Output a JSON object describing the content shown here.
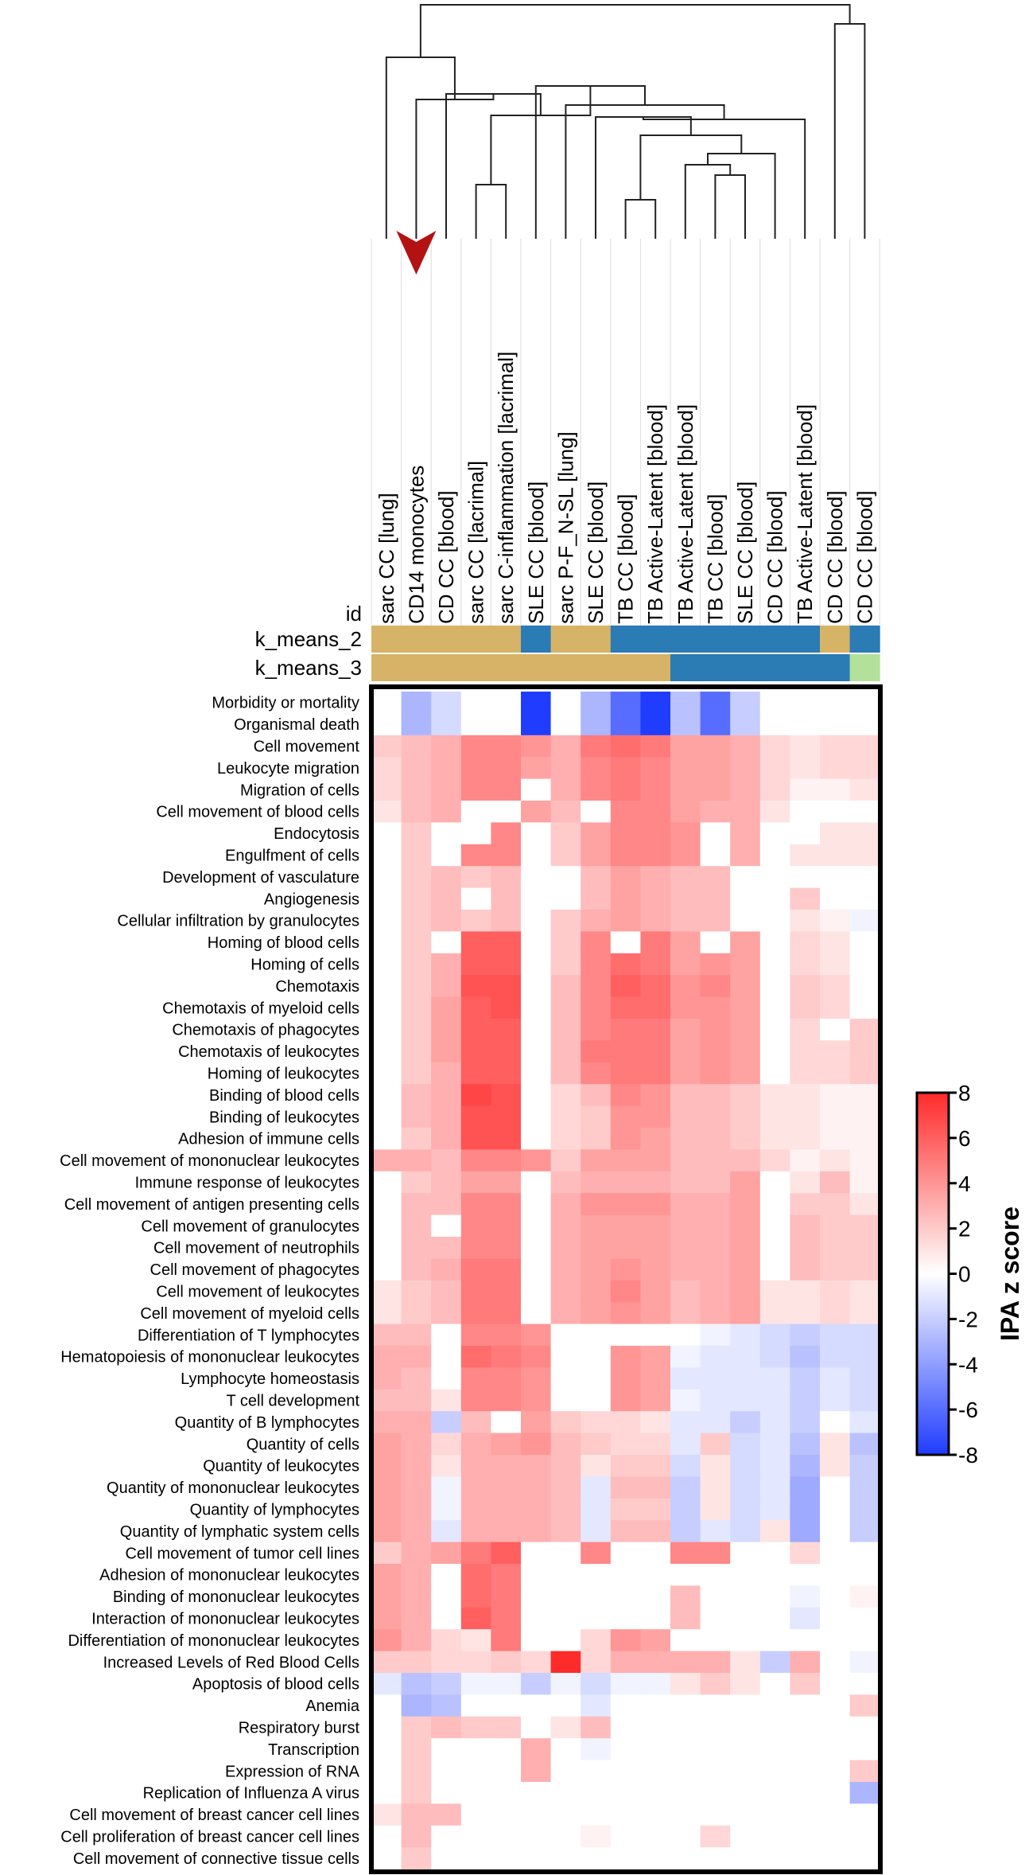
{
  "chart_data": {
    "type": "heatmap",
    "id_label": "id",
    "columns": [
      "sarc CC [lung]",
      "CD14 monocytes",
      "CD CC [blood]",
      "sarc CC [lacrimal]",
      "sarc C-inflammation [lacrimal]",
      "SLE CC [blood]",
      "sarc P-F_N-SL [lung]",
      "SLE CC [blood]",
      "TB CC [blood]",
      "TB Active-Latent [blood]",
      "TB Active-Latent [blood]",
      "TB CC [blood]",
      "SLE CC [blood]",
      "CD CC [blood]",
      "TB Active-Latent [blood]",
      "CD CC [blood]",
      "CD CC [blood]"
    ],
    "highlighted_column": "CD14 monocytes",
    "annotations": [
      {
        "name": "k_means_2",
        "clusters": [
          1,
          1,
          1,
          1,
          1,
          2,
          1,
          1,
          2,
          2,
          2,
          2,
          2,
          2,
          2,
          1,
          2
        ]
      },
      {
        "name": "k_means_3",
        "clusters": [
          1,
          1,
          1,
          1,
          1,
          1,
          1,
          1,
          1,
          1,
          2,
          2,
          2,
          2,
          2,
          2,
          3
        ]
      }
    ],
    "cluster_colors": {
      "1": "#d6b366",
      "2": "#2b7bb4",
      "3": "#b3e09a"
    },
    "rows": [
      "Morbidity or mortality",
      "Organismal death",
      "Cell movement",
      "Leukocyte migration",
      "Migration of cells",
      "Cell movement of blood cells",
      "Endocytosis",
      "Engulfment of cells",
      "Development of vasculature",
      "Angiogenesis",
      "Cellular infiltration by granulocytes",
      "Homing of blood cells",
      "Homing of cells",
      "Chemotaxis",
      "Chemotaxis of myeloid cells",
      "Chemotaxis of phagocytes",
      "Chemotaxis of leukocytes",
      "Homing of leukocytes",
      "Binding of blood cells",
      "Binding of leukocytes",
      "Adhesion of immune cells",
      "Cell movement of mononuclear leukocytes",
      "Immune response of leukocytes",
      "Cell movement of antigen presenting cells",
      "Cell movement of granulocytes",
      "Cell movement of neutrophils",
      "Cell movement of phagocytes",
      "Cell movement of leukocytes",
      "Cell movement of myeloid cells",
      "Differentiation of T lymphocytes",
      "Hematopoiesis of mononuclear leukocytes",
      "Lymphocyte homeostasis",
      "T cell development",
      "Quantity of B lymphocytes",
      "Quantity of cells",
      "Quantity of leukocytes",
      "Quantity of mononuclear leukocytes",
      "Quantity of lymphocytes",
      "Quantity of lymphatic system cells",
      "Cell movement of tumor cell lines",
      "Adhesion of mononuclear leukocytes",
      "Binding of mononuclear leukocytes",
      "Interaction of mononuclear leukocytes",
      "Differentiation of mononuclear leukocytes",
      "Increased Levels of Red Blood Cells",
      "Apoptosis of blood cells",
      "Anemia",
      "Respiratory burst",
      "Transcription",
      "Expression of RNA",
      "Replication of Influenza A virus",
      "Cell movement of breast cancer cell lines",
      "Cell proliferation of breast cancer cell lines",
      "Cell movement of connective tissue cells"
    ],
    "values": [
      [
        0,
        -3,
        -1.5,
        0,
        0,
        -8,
        0,
        -3,
        -6,
        -8,
        -2.5,
        -6,
        -2,
        0,
        0,
        0,
        0
      ],
      [
        0,
        -3,
        -1.5,
        0,
        0,
        -8,
        0,
        -3,
        -6,
        -8,
        -2.5,
        -6,
        -2,
        0,
        0,
        0,
        0
      ],
      [
        2,
        2.5,
        3,
        4.5,
        4.5,
        4,
        3,
        5,
        5.5,
        5,
        3.5,
        3.5,
        3,
        1.5,
        1,
        1.5,
        1.5
      ],
      [
        1.5,
        2.5,
        3,
        4.5,
        4.5,
        3.5,
        3,
        4.5,
        5,
        4.5,
        3.5,
        3.5,
        3,
        1.5,
        1,
        1.5,
        1.5
      ],
      [
        1.5,
        2.5,
        3,
        4.5,
        4.5,
        0,
        3,
        4.5,
        5,
        4.5,
        3.5,
        3.5,
        3,
        1.5,
        0.5,
        0.5,
        1
      ],
      [
        1,
        2.5,
        3,
        0,
        0,
        3.5,
        2.5,
        0,
        4.5,
        4.5,
        3.5,
        3,
        3,
        1,
        0,
        0,
        0
      ],
      [
        0,
        2,
        0,
        0,
        4.5,
        0,
        2,
        3.5,
        4.5,
        4.5,
        4,
        0,
        3,
        0,
        0,
        1,
        1
      ],
      [
        0,
        2,
        0,
        4.5,
        4.5,
        0,
        2,
        3.5,
        4.5,
        4.5,
        4,
        0,
        3,
        0,
        1,
        1,
        1
      ],
      [
        0,
        2,
        2.5,
        2,
        2.5,
        0,
        0,
        2.5,
        3.5,
        3,
        2.5,
        2.5,
        0,
        0,
        0,
        0,
        0
      ],
      [
        0,
        2,
        2.5,
        0,
        2.5,
        0,
        0,
        2.5,
        3.5,
        3,
        2.5,
        2.5,
        0,
        0,
        2,
        0,
        0
      ],
      [
        0,
        2,
        2.5,
        2,
        2.5,
        0,
        2,
        3,
        3.5,
        3,
        2.5,
        2.5,
        0,
        0,
        1,
        0.5,
        -0.5
      ],
      [
        0,
        2,
        0,
        6,
        6,
        0,
        2,
        4.5,
        0,
        5,
        3.5,
        0,
        3.5,
        0,
        1.5,
        1,
        0
      ],
      [
        0,
        2,
        3,
        6,
        6,
        0,
        2,
        4.5,
        5.5,
        5,
        3.5,
        4,
        3.5,
        0,
        1.5,
        1,
        0
      ],
      [
        0,
        2,
        3,
        6.5,
        6.5,
        0,
        2.5,
        4.5,
        6,
        5.5,
        4,
        4.5,
        3.5,
        0,
        2,
        1.5,
        0
      ],
      [
        0,
        2,
        3.5,
        6,
        6.5,
        0,
        2.5,
        4.5,
        5.5,
        5.5,
        4,
        4,
        3.5,
        0,
        2,
        1.5,
        0
      ],
      [
        0,
        2,
        3.5,
        6,
        6,
        0,
        2.5,
        4.5,
        5,
        5,
        3.5,
        4,
        3.5,
        0,
        1.5,
        0,
        2
      ],
      [
        0,
        2,
        3.5,
        6,
        6,
        0,
        2.5,
        5,
        5,
        5,
        3.5,
        4,
        3.5,
        0,
        1.5,
        1.5,
        2
      ],
      [
        0,
        2,
        3,
        6,
        6,
        0,
        2.5,
        4.5,
        5,
        5,
        3.5,
        4,
        3.5,
        0,
        1.5,
        1.5,
        2
      ],
      [
        0,
        2.5,
        3,
        7,
        6.5,
        0,
        1.5,
        2.5,
        4.5,
        4,
        2.5,
        2.5,
        2,
        1,
        1,
        0.5,
        0.5
      ],
      [
        0,
        2.5,
        3,
        6.5,
        6.5,
        0,
        1.5,
        2,
        4,
        4,
        2.5,
        2.5,
        2,
        1,
        1,
        0.5,
        0.5
      ],
      [
        0,
        2,
        3,
        6.5,
        6.5,
        0,
        1.5,
        2,
        4,
        3.5,
        2.5,
        2.5,
        2,
        1,
        1,
        0.5,
        0.5
      ],
      [
        3,
        3,
        2.5,
        4.5,
        4.5,
        4,
        2,
        3.5,
        3.5,
        3.5,
        2.5,
        2.5,
        2.5,
        1.5,
        0.5,
        1,
        0.5
      ],
      [
        0,
        2,
        2.5,
        3.5,
        3.5,
        0,
        2.5,
        3,
        3,
        3,
        2.5,
        2.5,
        3.5,
        0,
        1,
        2.5,
        0.5
      ],
      [
        0,
        2.5,
        2.5,
        4.5,
        4.5,
        0,
        3,
        4,
        4,
        4,
        3,
        3,
        3.5,
        0,
        2,
        2,
        1
      ],
      [
        0,
        2.5,
        0,
        4.5,
        4.5,
        0,
        3,
        3.5,
        3.5,
        3.5,
        3,
        3,
        3.5,
        0,
        2.5,
        2,
        2
      ],
      [
        0,
        2.5,
        2.5,
        4.5,
        4.5,
        0,
        3,
        3.5,
        3.5,
        3.5,
        3,
        3,
        3.5,
        0,
        2.5,
        2,
        2
      ],
      [
        0,
        2.5,
        3,
        5,
        5,
        0,
        3,
        3.5,
        4,
        3.5,
        3,
        3,
        3.5,
        0,
        2.5,
        2,
        2
      ],
      [
        1,
        2,
        2.5,
        5,
        5,
        0,
        3,
        3.5,
        4.5,
        3.5,
        2.5,
        3,
        3.5,
        1,
        1,
        1.5,
        1
      ],
      [
        1,
        2,
        2.5,
        5,
        5,
        0,
        3,
        3.5,
        4,
        3.5,
        2.5,
        3,
        3.5,
        1,
        1,
        1.5,
        1
      ],
      [
        2.5,
        2.5,
        0,
        4.5,
        4.5,
        4,
        0,
        0,
        0,
        0,
        0,
        -0.5,
        -1,
        -1.5,
        -2,
        -1.5,
        -1.5
      ],
      [
        3,
        3,
        0,
        5.5,
        5,
        4.5,
        0,
        0,
        4,
        3.5,
        -0.5,
        -1,
        -1,
        -1.5,
        -2.5,
        -1.5,
        -1.5
      ],
      [
        3,
        2.5,
        0,
        4.5,
        4.5,
        4,
        0,
        0,
        4,
        3.5,
        -1,
        -1,
        -1,
        -1,
        -2,
        -1,
        -1.5
      ],
      [
        2.5,
        2.5,
        1,
        4.5,
        4.5,
        4,
        0,
        0,
        4,
        3.5,
        -0.5,
        -1,
        -1,
        -1,
        -2,
        -1,
        -1.5
      ],
      [
        3,
        3,
        -2,
        2.5,
        0,
        3.5,
        2,
        1.5,
        1.5,
        1,
        -1,
        -1,
        -2,
        -1,
        -2,
        0,
        -1
      ],
      [
        3.5,
        3,
        1.5,
        3,
        3.5,
        4,
        2.5,
        2,
        1.5,
        1.5,
        -1,
        2,
        -1.5,
        -1,
        -2.5,
        1,
        -2.5
      ],
      [
        3.5,
        3,
        1,
        3,
        3,
        3,
        2.5,
        1,
        2,
        2,
        -1.5,
        1,
        -1.5,
        -1,
        -3,
        1,
        -2
      ],
      [
        3.5,
        3,
        -0.5,
        3,
        3,
        3,
        2.5,
        -1,
        2.5,
        2.5,
        -2,
        1,
        -1.5,
        -1,
        -3.5,
        0,
        -2
      ],
      [
        3.5,
        3,
        -0.5,
        3,
        3,
        3,
        2.5,
        -1,
        2,
        2,
        -2,
        1,
        -1.5,
        -1,
        -3.5,
        0,
        -2
      ],
      [
        3.5,
        3,
        -1,
        3,
        3,
        3,
        2.5,
        -1,
        2.5,
        2.5,
        -2,
        -1,
        -1.5,
        1,
        -3.5,
        0,
        -2
      ],
      [
        2,
        3,
        3.5,
        5,
        6,
        0,
        0,
        4.5,
        0,
        0,
        4.5,
        4.5,
        0,
        0,
        1.5,
        0,
        0
      ],
      [
        3.5,
        3,
        0,
        5.5,
        5,
        0,
        0,
        0,
        0,
        0,
        0,
        0,
        0,
        0,
        0,
        0,
        0
      ],
      [
        3.5,
        3,
        0,
        5.5,
        5,
        0,
        0,
        0,
        0,
        0,
        2.5,
        0,
        0,
        0,
        -0.5,
        0,
        0.5
      ],
      [
        3.5,
        3,
        0,
        6,
        5,
        0,
        0,
        0,
        0,
        0,
        2.5,
        0,
        0,
        0,
        -1,
        0,
        0
      ],
      [
        4,
        3,
        1.5,
        1,
        5,
        0,
        0,
        1.5,
        4,
        3.5,
        0,
        0,
        0,
        0,
        0,
        0,
        0
      ],
      [
        2,
        2,
        1.5,
        1.5,
        2,
        1.5,
        8,
        1.5,
        3,
        3,
        3,
        3,
        1,
        -2,
        3,
        0,
        -0.5
      ],
      [
        -1,
        -2.5,
        -2,
        -0.5,
        -0.5,
        -2,
        -0.5,
        -1.5,
        -0.5,
        -0.5,
        1,
        2,
        1,
        0,
        2,
        0,
        0
      ],
      [
        0,
        -3,
        -2.5,
        0,
        0,
        0,
        0,
        -1,
        0,
        0,
        0,
        0,
        0,
        0,
        0,
        0,
        2
      ],
      [
        0,
        2,
        2.5,
        2,
        2,
        0,
        1,
        2.5,
        0,
        0,
        0,
        0,
        0,
        0,
        0,
        0,
        0
      ],
      [
        0,
        2,
        0,
        0,
        0,
        3,
        0,
        -0.5,
        0,
        0,
        0,
        0,
        0,
        0,
        0,
        0,
        0
      ],
      [
        0,
        2,
        0,
        0,
        0,
        3,
        0,
        0,
        0,
        0,
        0,
        0,
        0,
        0,
        0,
        0,
        2
      ],
      [
        0,
        2,
        0,
        0,
        0,
        0,
        0,
        0,
        0,
        0,
        0,
        0,
        0,
        0,
        0,
        0,
        -3
      ],
      [
        1,
        2.5,
        2.5,
        0,
        0,
        0,
        0,
        0,
        0,
        0,
        0,
        0,
        0,
        0,
        0,
        0,
        0
      ],
      [
        0,
        2.5,
        0,
        0,
        0,
        0,
        0,
        0.5,
        0,
        0,
        0,
        1.5,
        0,
        0,
        0,
        0,
        0
      ],
      [
        0,
        2,
        0,
        0,
        0,
        0,
        0,
        0,
        0,
        0,
        0,
        0,
        0,
        0,
        0,
        0,
        0
      ]
    ],
    "colorbar": {
      "label": "IPA z score",
      "range": [
        -8,
        8
      ],
      "ticks": [
        "8",
        "6",
        "4",
        "2",
        "0",
        "-2",
        "-4",
        "-6",
        "-8"
      ],
      "low_color": "#1f3cff",
      "mid_color": "#ffffff",
      "high_color": "#ff2a2a"
    },
    "dendrogram": "column hierarchical clustering (shown above columns)"
  }
}
